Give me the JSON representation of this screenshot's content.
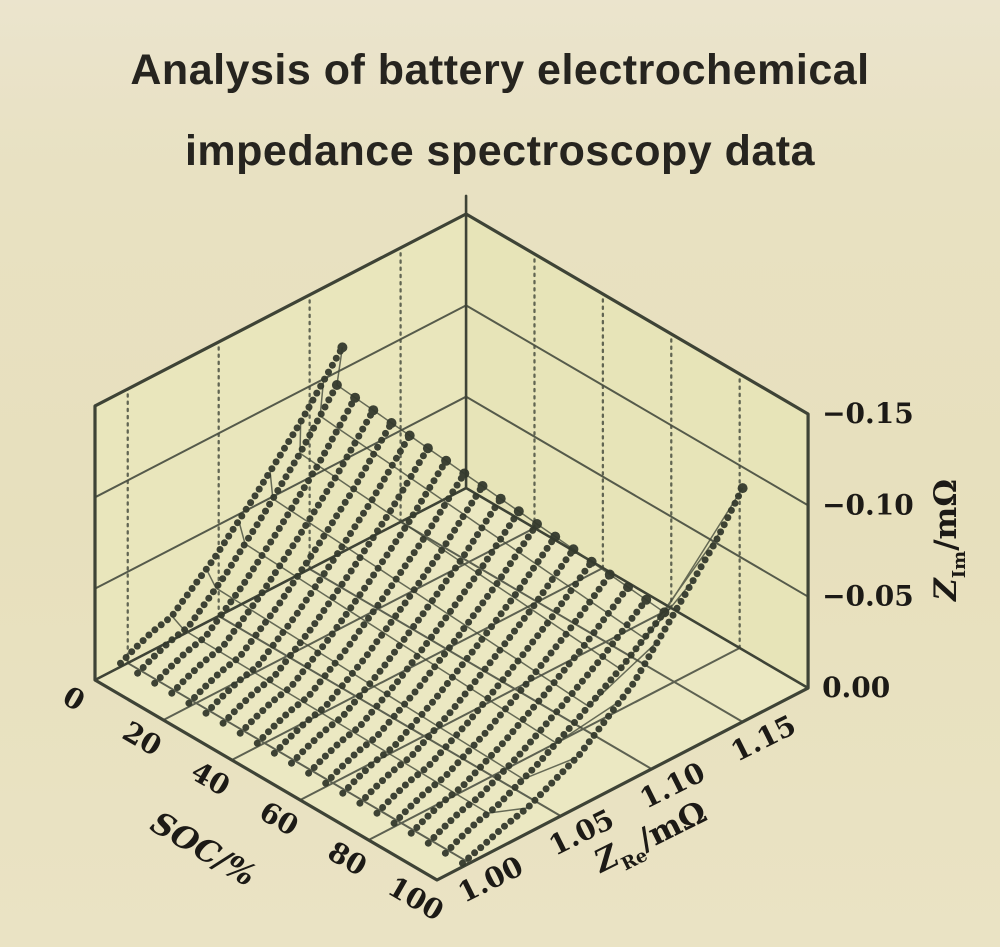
{
  "page": {
    "title_line1": "Analysis of battery electrochemical",
    "title_line2": "impedance spectroscopy data"
  },
  "chart_data": {
    "type": "line3d",
    "description": "3D waterfall of battery EIS Nyquist curves (Z_Re vs -Z_Im) measured at SOC 0-100%",
    "axes": {
      "soc": {
        "label": "SOC/%",
        "ticks": [
          "0",
          "20",
          "40",
          "60",
          "80",
          "100"
        ],
        "tick_values": [
          0,
          20,
          40,
          60,
          80,
          100
        ],
        "range": [
          0,
          100
        ]
      },
      "z_re": {
        "label_main": "Z",
        "label_sub": "Re",
        "label_unit": "/mΩ",
        "ticks": [
          "1.00",
          "1.05",
          "1.10",
          "1.15"
        ],
        "tick_values": [
          1.0,
          1.05,
          1.1,
          1.15
        ],
        "range": [
          0.982,
          1.186
        ]
      },
      "z_im": {
        "label_main": "Z",
        "label_sub": "Im",
        "label_unit": "/mΩ",
        "ticks": [
          "0.00",
          "−0.05",
          "−0.10",
          "−0.15"
        ],
        "tick_values": [
          0.0,
          -0.05,
          -0.1,
          -0.15
        ],
        "range": [
          0,
          -0.15
        ]
      }
    },
    "grid": {
      "wall_levels": [
        0.05,
        0.1
      ],
      "floor_soc_lines": [
        20,
        40,
        60,
        80
      ],
      "floor_re_lines": [
        1.0,
        1.05,
        1.1,
        1.15
      ],
      "wall_re_dashed": [
        1.0,
        1.05,
        1.1,
        1.15
      ],
      "wall_soc_dashed": [
        20,
        40,
        60,
        80
      ]
    },
    "arc_points": [
      [
        0.996,
        0.002
      ],
      [
        1.004,
        0.006
      ],
      [
        1.013,
        0.01
      ],
      [
        1.024,
        0.013
      ]
    ],
    "tail_shape": [
      [
        0.25,
        0.2
      ],
      [
        0.5,
        0.44
      ],
      [
        0.75,
        0.7
      ],
      [
        1.0,
        1.0
      ]
    ],
    "mesh_fractions": [
      0.18,
      0.33,
      0.48,
      0.63,
      0.78,
      0.9,
      1.0
    ],
    "series": [
      {
        "soc": 0,
        "tail_end": [
          1.118,
          0.112
        ]
      },
      {
        "soc": 5,
        "tail_end": [
          1.1056,
          0.1033
        ]
      },
      {
        "soc": 10,
        "tail_end": [
          1.1062,
          0.1015
        ]
      },
      {
        "soc": 15,
        "tail_end": [
          1.1068,
          0.0998
        ]
      },
      {
        "soc": 20,
        "tail_end": [
          1.1074,
          0.098
        ]
      },
      {
        "soc": 25,
        "tail_end": [
          1.108,
          0.0963
        ]
      },
      {
        "soc": 30,
        "tail_end": [
          1.1086,
          0.0945
        ]
      },
      {
        "soc": 35,
        "tail_end": [
          1.1092,
          0.0928
        ]
      },
      {
        "soc": 40,
        "tail_end": [
          1.1098,
          0.091
        ]
      },
      {
        "soc": 45,
        "tail_end": [
          1.1104,
          0.0893
        ]
      },
      {
        "soc": 50,
        "tail_end": [
          1.111,
          0.0875
        ]
      },
      {
        "soc": 55,
        "tail_end": [
          1.1116,
          0.0858
        ]
      },
      {
        "soc": 60,
        "tail_end": [
          1.1122,
          0.084
        ]
      },
      {
        "soc": 65,
        "tail_end": [
          1.1128,
          0.0823
        ]
      },
      {
        "soc": 70,
        "tail_end": [
          1.1134,
          0.0805
        ]
      },
      {
        "soc": 75,
        "tail_end": [
          1.114,
          0.0788
        ]
      },
      {
        "soc": 80,
        "tail_end": [
          1.1146,
          0.077
        ]
      },
      {
        "soc": 85,
        "tail_end": [
          1.1152,
          0.0753
        ]
      },
      {
        "soc": 90,
        "tail_end": [
          1.1158,
          0.0735
        ]
      },
      {
        "soc": 95,
        "tail_end": [
          1.1164,
          0.0718
        ]
      },
      {
        "soc": 100,
        "points": [
          [
            0.996,
            0.002
          ],
          [
            1.008,
            0.006
          ],
          [
            1.018,
            0.01
          ],
          [
            1.032,
            0.014
          ],
          [
            1.06,
            0.028
          ],
          [
            1.09,
            0.052
          ],
          [
            1.115,
            0.082
          ],
          [
            1.135,
            0.106
          ],
          [
            1.15,
            0.128
          ]
        ]
      }
    ]
  },
  "style": {
    "outline_color": "#3e4336",
    "grid_color": "#4e5345",
    "dashed_color": "#4a4f41",
    "bead_color": "#343a2d",
    "mesh_color": "#454b3c",
    "text_color": "#1c1a16",
    "face_left": "#e9e6bc",
    "face_right": "#e7e4b8",
    "face_floor": "#ebe8c2"
  }
}
